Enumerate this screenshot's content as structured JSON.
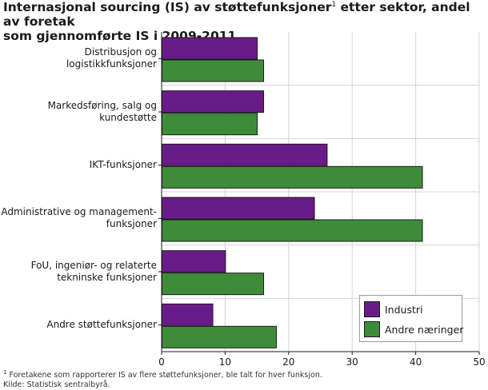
{
  "title": {
    "line1_before": "Internasjonal sourcing (IS) av støttefunksjoner",
    "line1_sup": "1",
    "line1_after": " etter sektor, andel av foretak",
    "line2": "som gjennomførte IS i 2009-2011"
  },
  "colors": {
    "industri": "#6a1b8a",
    "andre": "#3e8c3a"
  },
  "legend": {
    "items": [
      "Industri",
      "Andre næringer"
    ]
  },
  "footnotes": {
    "note_sup": "1",
    "note": " Foretakene som rapporterer IS av flere støttefunksjoner, ble talt for hver  funksjon.",
    "source": "Kilde: Statistisk sentralbyrå."
  },
  "chart_data": {
    "type": "bar",
    "orientation": "horizontal",
    "categories": [
      [
        "Distribusjon og",
        "logistikkfunksjoner"
      ],
      [
        "Markedsføring, salg og",
        "kundestøtte"
      ],
      [
        "IKT-funksjoner"
      ],
      [
        "Administrative og management-",
        "funksjoner"
      ],
      [
        "FoU, ingeniør- og relaterte",
        "tekninske funksjoner"
      ],
      [
        "Andre støttefunksjoner"
      ]
    ],
    "series": [
      {
        "name": "Industri",
        "values": [
          15,
          16,
          26,
          24,
          10,
          8
        ]
      },
      {
        "name": "Andre næringer",
        "values": [
          16,
          15,
          41,
          41,
          16,
          18
        ]
      }
    ],
    "xlim": [
      0,
      50
    ],
    "xticks": [
      "0",
      "10",
      "20",
      "30",
      "40",
      "50"
    ],
    "grid": true,
    "legend_position": "bottom-right"
  }
}
